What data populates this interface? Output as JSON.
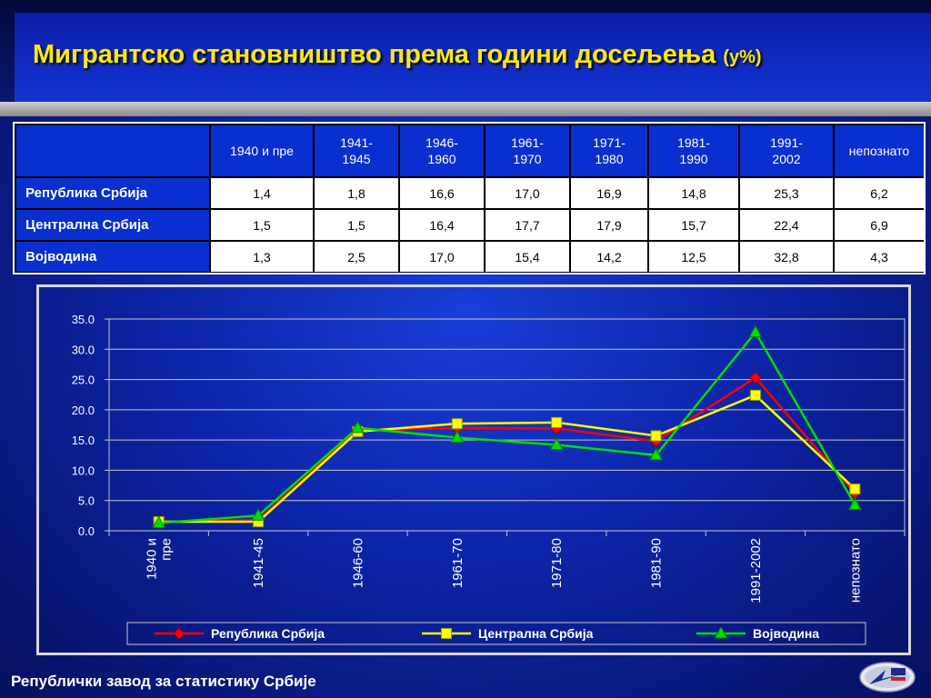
{
  "slide": {
    "title": "Мигрантско становништво према години досељења",
    "title_unit": "(у%)",
    "footer": "Републички завод за статистику Србије"
  },
  "table": {
    "headers": [
      "1940 и пре",
      "1941-\n1945",
      "1946-\n1960",
      "1961-\n1970",
      "1971-\n1980",
      "1981-\n1990",
      "1991-\n2002",
      "непознато"
    ],
    "rows": [
      {
        "label": "Република Србија",
        "values": [
          "1,4",
          "1,8",
          "16,6",
          "17,0",
          "16,9",
          "14,8",
          "25,3",
          "6,2"
        ]
      },
      {
        "label": "Централна Србија",
        "values": [
          "1,5",
          "1,5",
          "16,4",
          "17,7",
          "17,9",
          "15,7",
          "22,4",
          "6,9"
        ]
      },
      {
        "label": "Војводина",
        "values": [
          "1,3",
          "2,5",
          "17,0",
          "15,4",
          "14,2",
          "12,5",
          "32,8",
          "4,3"
        ]
      }
    ]
  },
  "chart_data": {
    "type": "line",
    "categories": [
      "1940 и\nпре",
      "1941-45",
      "1946-60",
      "1961-70",
      "1971-80",
      "1981-90",
      "1991-2002",
      "непознато"
    ],
    "series": [
      {
        "name": "Република Србија",
        "color": "#ff0000",
        "marker": "diamond",
        "values": [
          1.4,
          1.8,
          16.6,
          17.0,
          16.9,
          14.8,
          25.3,
          6.2
        ]
      },
      {
        "name": "Централна Србија",
        "color": "#ffff00",
        "marker": "square",
        "values": [
          1.5,
          1.5,
          16.4,
          17.7,
          17.9,
          15.7,
          22.4,
          6.9
        ]
      },
      {
        "name": "Војводина",
        "color": "#00dd00",
        "marker": "triangle",
        "values": [
          1.3,
          2.5,
          17.0,
          15.4,
          14.2,
          12.5,
          32.8,
          4.3
        ]
      }
    ],
    "yticks": [
      "0.0",
      "5.0",
      "10.0",
      "15.0",
      "20.0",
      "25.0",
      "30.0",
      "35.0"
    ],
    "ylim": [
      0,
      35
    ],
    "grid": true,
    "legend_position": "bottom"
  }
}
